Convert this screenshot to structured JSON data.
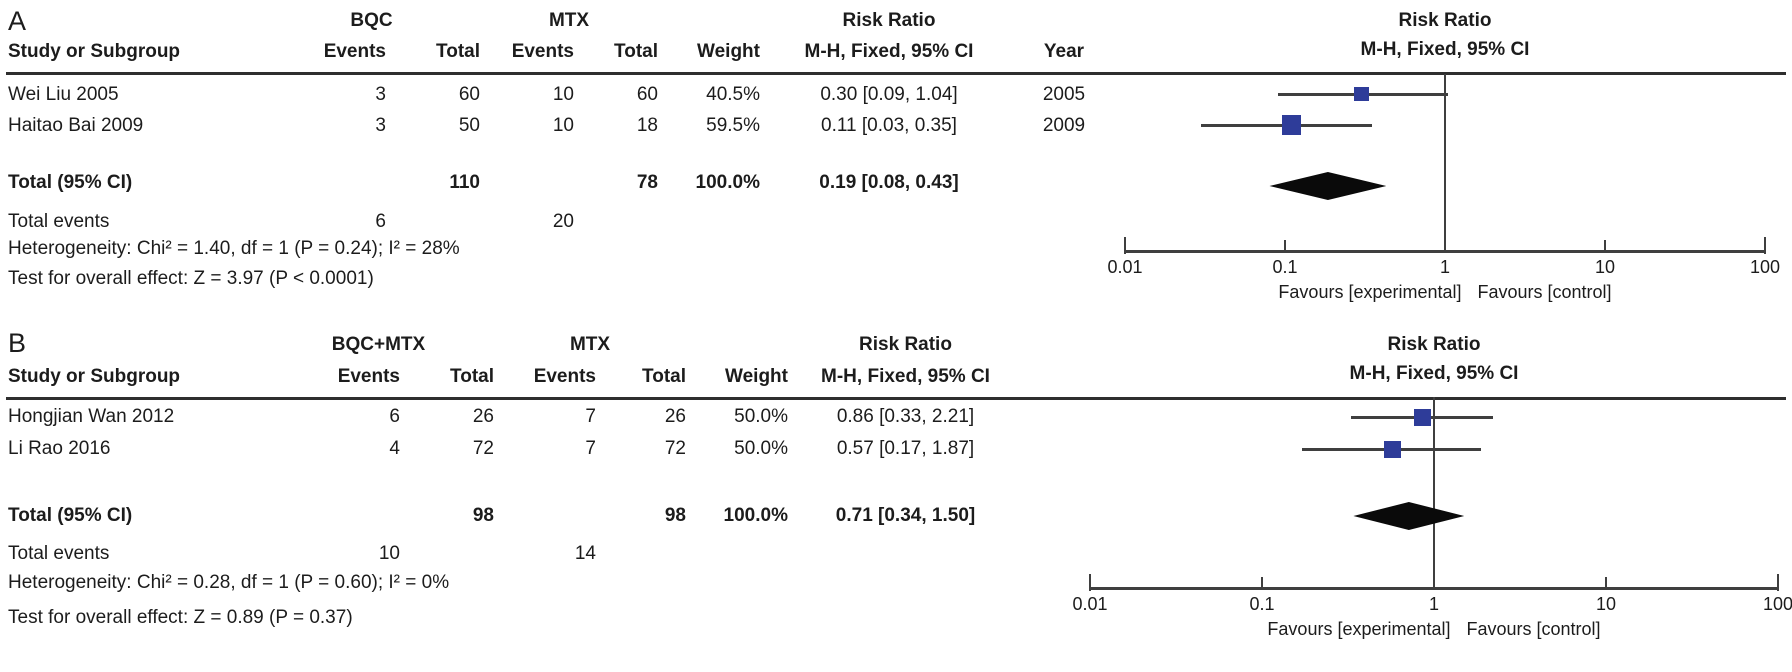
{
  "colors": {
    "study_square": "#2e3c99",
    "pooled_diamond": "#0a0a0a",
    "plot_lines": "#3f3f3f",
    "text": "#1c1c1c"
  },
  "panels": [
    {
      "label": "A",
      "group1": "BQC",
      "group2": "MTX",
      "risk_ratio": "Risk Ratio",
      "method": "M-H, Fixed, 95% CI",
      "col_study": "Study or Subgroup",
      "col_events": "Events",
      "col_total": "Total",
      "col_weight": "Weight",
      "col_year": "Year",
      "rows": [
        {
          "study": "Wei Liu 2005",
          "events1": "3",
          "total1": "60",
          "events2": "10",
          "total2": "60",
          "weight": "40.5%",
          "ci": "0.30 [0.09, 1.04]",
          "year": "2005"
        },
        {
          "study": "Haitao Bai 2009",
          "events1": "3",
          "total1": "50",
          "events2": "10",
          "total2": "18",
          "weight": "59.5%",
          "ci": "0.11 [0.03, 0.35]",
          "year": "2009"
        }
      ],
      "total_row": {
        "label": "Total (95% CI)",
        "total1": "110",
        "total2": "78",
        "weight": "100.0%",
        "ci": "0.19 [0.08, 0.43]"
      },
      "total_events": {
        "label": "Total events",
        "events1": "6",
        "events2": "20"
      },
      "heterogeneity": "Heterogeneity: Chi² = 1.40, df = 1 (P = 0.24); I² = 28%",
      "overall_effect": "Test for overall effect: Z = 3.97 (P < 0.0001)",
      "plot_title": "Risk Ratio",
      "plot_method": "M-H, Fixed, 95% CI"
    },
    {
      "label": "B",
      "group1": "BQC+MTX",
      "group2": "MTX",
      "risk_ratio": "Risk Ratio",
      "method": "M-H, Fixed, 95% CI",
      "col_study": "Study or Subgroup",
      "col_events": "Events",
      "col_total": "Total",
      "col_weight": "Weight",
      "rows": [
        {
          "study": "Hongjian Wan 2012",
          "events1": "6",
          "total1": "26",
          "events2": "7",
          "total2": "26",
          "weight": "50.0%",
          "ci": "0.86 [0.33, 2.21]"
        },
        {
          "study": "Li Rao 2016",
          "events1": "4",
          "total1": "72",
          "events2": "7",
          "total2": "72",
          "weight": "50.0%",
          "ci": "0.57 [0.17, 1.87]"
        }
      ],
      "total_row": {
        "label": "Total (95% CI)",
        "total1": "98",
        "total2": "98",
        "weight": "100.0%",
        "ci": "0.71 [0.34, 1.50]"
      },
      "total_events": {
        "label": "Total events",
        "events1": "10",
        "events2": "14"
      },
      "heterogeneity": "Heterogeneity: Chi² = 0.28, df = 1 (P = 0.60); I² = 0%",
      "overall_effect": "Test for overall effect: Z = 0.89 (P = 0.37)",
      "plot_title": "Risk Ratio",
      "plot_method": "M-H, Fixed, 95% CI"
    }
  ],
  "chart_data": [
    {
      "type": "scatter",
      "variant": "forest_plot",
      "panel": "A",
      "title": "Risk Ratio",
      "method": "M-H, Fixed, 95% CI",
      "xscale": "log",
      "xlim": [
        0.01,
        100
      ],
      "x_ticks": [
        "0.01",
        "0.1",
        "1",
        "10",
        "100"
      ],
      "studies": [
        {
          "label": "Wei Liu 2005",
          "rr": 0.3,
          "ci": [
            0.09,
            1.04
          ],
          "weight_pct": 40.5,
          "year": 2005
        },
        {
          "label": "Haitao Bai 2009",
          "rr": 0.11,
          "ci": [
            0.03,
            0.35
          ],
          "weight_pct": 59.5,
          "year": 2009
        }
      ],
      "total": {
        "label": "Total (95% CI)",
        "rr": 0.19,
        "ci": [
          0.08,
          0.43
        ]
      },
      "caption_left": "Favours [experimental]",
      "caption_right": "Favours [control]"
    },
    {
      "type": "scatter",
      "variant": "forest_plot",
      "panel": "B",
      "title": "Risk Ratio",
      "method": "M-H, Fixed, 95% CI",
      "xscale": "log",
      "xlim": [
        0.01,
        100
      ],
      "x_ticks": [
        "0.01",
        "0.1",
        "1",
        "10",
        "100"
      ],
      "studies": [
        {
          "label": "Hongjian Wan 2012",
          "rr": 0.86,
          "ci": [
            0.33,
            2.21
          ],
          "weight_pct": 50.0
        },
        {
          "label": "Li Rao 2016",
          "rr": 0.57,
          "ci": [
            0.17,
            1.87
          ],
          "weight_pct": 50.0
        }
      ],
      "total": {
        "label": "Total (95% CI)",
        "rr": 0.71,
        "ci": [
          0.34,
          1.5
        ]
      },
      "caption_left": "Favours [experimental]",
      "caption_right": "Favours [control]"
    }
  ]
}
